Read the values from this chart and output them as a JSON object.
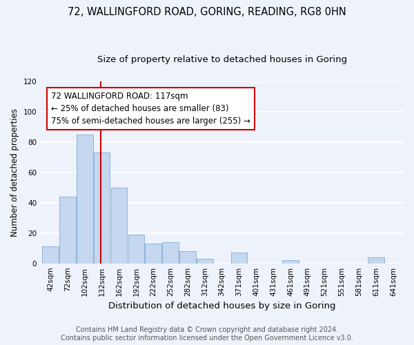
{
  "title": "72, WALLINGFORD ROAD, GORING, READING, RG8 0HN",
  "subtitle": "Size of property relative to detached houses in Goring",
  "xlabel": "Distribution of detached houses by size in Goring",
  "ylabel": "Number of detached properties",
  "bar_labels": [
    "42sqm",
    "72sqm",
    "102sqm",
    "132sqm",
    "162sqm",
    "192sqm",
    "222sqm",
    "252sqm",
    "282sqm",
    "312sqm",
    "342sqm",
    "371sqm",
    "401sqm",
    "431sqm",
    "461sqm",
    "491sqm",
    "521sqm",
    "551sqm",
    "581sqm",
    "611sqm",
    "641sqm"
  ],
  "bar_values": [
    11,
    44,
    85,
    73,
    50,
    19,
    13,
    14,
    8,
    3,
    0,
    7,
    0,
    0,
    2,
    0,
    0,
    0,
    0,
    4,
    0
  ],
  "bar_color": "#c5d8f0",
  "bar_edge_color": "#8ab4d8",
  "ylim": [
    0,
    120
  ],
  "yticks": [
    0,
    20,
    40,
    60,
    80,
    100,
    120
  ],
  "property_line_x": 2.92,
  "property_line_color": "#cc0000",
  "annotation_text_line1": "72 WALLINGFORD ROAD: 117sqm",
  "annotation_text_line2": "← 25% of detached houses are smaller (83)",
  "annotation_text_line3": "75% of semi-detached houses are larger (255) →",
  "footer_line1": "Contains HM Land Registry data © Crown copyright and database right 2024.",
  "footer_line2": "Contains public sector information licensed under the Open Government Licence v3.0.",
  "background_color": "#eef2fb",
  "plot_bg_color": "#eef2fb",
  "grid_color": "#ffffff",
  "title_fontsize": 10.5,
  "subtitle_fontsize": 9.5,
  "xlabel_fontsize": 9.5,
  "ylabel_fontsize": 8.5,
  "tick_fontsize": 7.5,
  "annotation_fontsize": 8.5,
  "footer_fontsize": 7.0
}
